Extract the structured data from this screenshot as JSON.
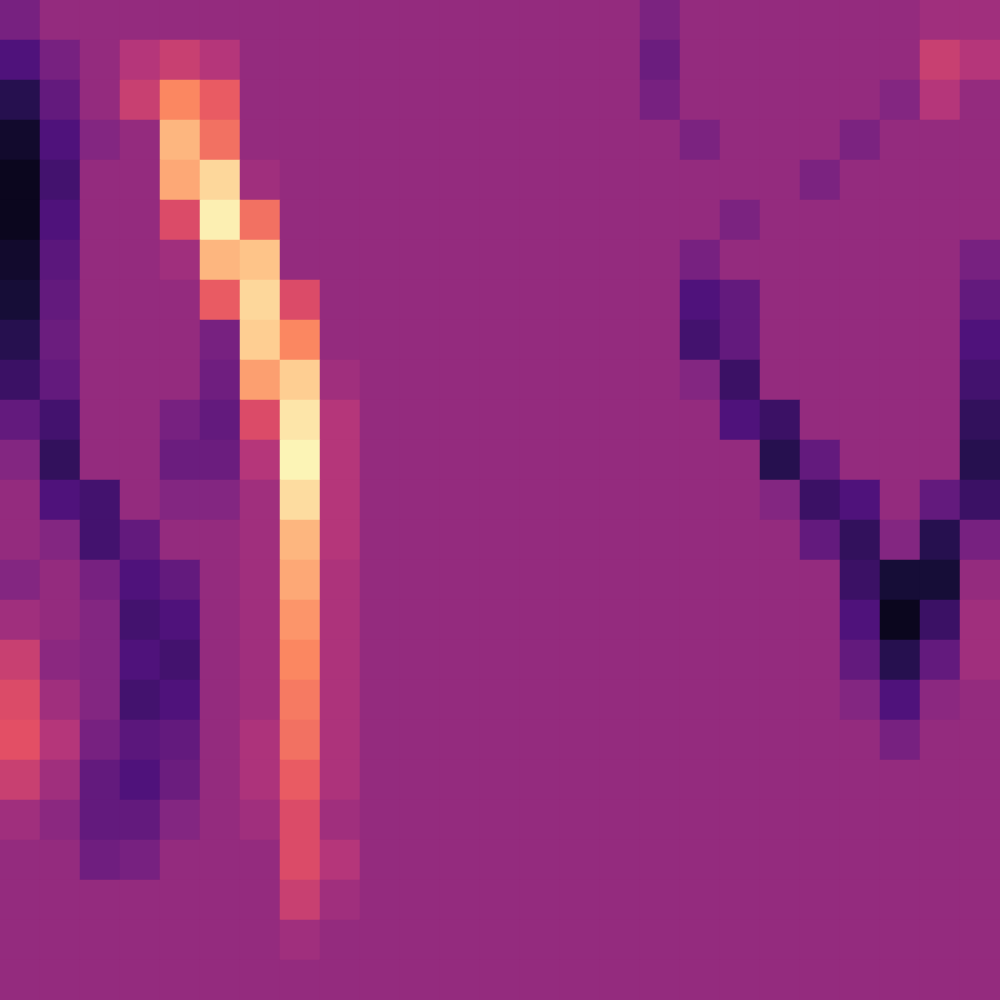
{
  "chart_data": {
    "type": "heatmap",
    "tick_labels": false,
    "grid": false,
    "color_range": [
      0,
      1
    ],
    "values": [
      [
        0.35,
        0.42,
        0.42,
        0.42,
        0.42,
        0.42,
        0.42,
        0.42,
        0.42,
        0.42,
        0.42,
        0.42,
        0.42,
        0.42,
        0.42,
        0.42,
        0.36,
        0.42,
        0.42,
        0.42,
        0.42,
        0.42,
        0.42,
        0.45,
        0.45
      ],
      [
        0.25,
        0.35,
        0.42,
        0.5,
        0.55,
        0.5,
        0.42,
        0.42,
        0.42,
        0.42,
        0.42,
        0.42,
        0.42,
        0.42,
        0.42,
        0.42,
        0.32,
        0.42,
        0.42,
        0.42,
        0.42,
        0.42,
        0.42,
        0.55,
        0.5
      ],
      [
        0.15,
        0.3,
        0.42,
        0.55,
        0.75,
        0.65,
        0.42,
        0.42,
        0.42,
        0.42,
        0.42,
        0.42,
        0.42,
        0.42,
        0.42,
        0.42,
        0.35,
        0.42,
        0.42,
        0.42,
        0.42,
        0.42,
        0.38,
        0.5,
        0.42
      ],
      [
        0.08,
        0.25,
        0.38,
        0.42,
        0.85,
        0.7,
        0.42,
        0.42,
        0.42,
        0.42,
        0.42,
        0.42,
        0.42,
        0.42,
        0.42,
        0.42,
        0.42,
        0.36,
        0.42,
        0.42,
        0.42,
        0.36,
        0.42,
        0.42,
        0.42
      ],
      [
        0.05,
        0.22,
        0.42,
        0.42,
        0.82,
        0.92,
        0.45,
        0.42,
        0.42,
        0.42,
        0.42,
        0.42,
        0.42,
        0.42,
        0.42,
        0.42,
        0.42,
        0.42,
        0.42,
        0.42,
        0.36,
        0.42,
        0.42,
        0.42,
        0.42
      ],
      [
        0.05,
        0.25,
        0.42,
        0.42,
        0.6,
        0.97,
        0.7,
        0.42,
        0.42,
        0.42,
        0.42,
        0.42,
        0.42,
        0.42,
        0.42,
        0.42,
        0.42,
        0.42,
        0.36,
        0.42,
        0.42,
        0.42,
        0.42,
        0.42,
        0.42
      ],
      [
        0.08,
        0.28,
        0.42,
        0.42,
        0.45,
        0.85,
        0.88,
        0.42,
        0.42,
        0.42,
        0.42,
        0.42,
        0.42,
        0.42,
        0.42,
        0.42,
        0.42,
        0.35,
        0.42,
        0.42,
        0.42,
        0.42,
        0.42,
        0.42,
        0.35
      ],
      [
        0.1,
        0.3,
        0.42,
        0.42,
        0.42,
        0.65,
        0.92,
        0.6,
        0.42,
        0.42,
        0.42,
        0.42,
        0.42,
        0.42,
        0.42,
        0.42,
        0.42,
        0.25,
        0.3,
        0.42,
        0.42,
        0.42,
        0.42,
        0.42,
        0.3
      ],
      [
        0.15,
        0.32,
        0.42,
        0.42,
        0.42,
        0.35,
        0.9,
        0.75,
        0.42,
        0.42,
        0.42,
        0.42,
        0.42,
        0.42,
        0.42,
        0.42,
        0.42,
        0.22,
        0.3,
        0.42,
        0.42,
        0.42,
        0.42,
        0.42,
        0.25
      ],
      [
        0.2,
        0.3,
        0.42,
        0.42,
        0.42,
        0.33,
        0.8,
        0.9,
        0.45,
        0.42,
        0.42,
        0.42,
        0.42,
        0.42,
        0.42,
        0.42,
        0.42,
        0.38,
        0.2,
        0.42,
        0.42,
        0.42,
        0.42,
        0.42,
        0.22
      ],
      [
        0.3,
        0.22,
        0.42,
        0.42,
        0.35,
        0.3,
        0.6,
        0.95,
        0.5,
        0.42,
        0.42,
        0.42,
        0.42,
        0.42,
        0.42,
        0.42,
        0.42,
        0.42,
        0.25,
        0.2,
        0.42,
        0.42,
        0.42,
        0.42,
        0.18
      ],
      [
        0.38,
        0.18,
        0.42,
        0.42,
        0.32,
        0.32,
        0.5,
        0.98,
        0.5,
        0.42,
        0.42,
        0.42,
        0.42,
        0.42,
        0.42,
        0.42,
        0.42,
        0.42,
        0.42,
        0.15,
        0.3,
        0.42,
        0.42,
        0.42,
        0.15
      ],
      [
        0.42,
        0.25,
        0.22,
        0.42,
        0.38,
        0.38,
        0.45,
        0.93,
        0.5,
        0.42,
        0.42,
        0.42,
        0.42,
        0.42,
        0.42,
        0.42,
        0.42,
        0.42,
        0.42,
        0.38,
        0.2,
        0.25,
        0.42,
        0.3,
        0.2
      ],
      [
        0.42,
        0.38,
        0.22,
        0.3,
        0.42,
        0.42,
        0.45,
        0.85,
        0.5,
        0.42,
        0.42,
        0.42,
        0.42,
        0.42,
        0.42,
        0.42,
        0.42,
        0.42,
        0.42,
        0.42,
        0.3,
        0.18,
        0.38,
        0.15,
        0.35
      ],
      [
        0.38,
        0.42,
        0.35,
        0.25,
        0.3,
        0.42,
        0.45,
        0.82,
        0.48,
        0.42,
        0.42,
        0.42,
        0.42,
        0.42,
        0.42,
        0.42,
        0.42,
        0.42,
        0.42,
        0.42,
        0.42,
        0.2,
        0.1,
        0.1,
        0.42
      ],
      [
        0.45,
        0.42,
        0.38,
        0.22,
        0.25,
        0.42,
        0.45,
        0.78,
        0.48,
        0.42,
        0.42,
        0.42,
        0.42,
        0.42,
        0.42,
        0.42,
        0.42,
        0.42,
        0.42,
        0.42,
        0.42,
        0.25,
        0.05,
        0.2,
        0.45
      ],
      [
        0.55,
        0.4,
        0.38,
        0.25,
        0.22,
        0.42,
        0.45,
        0.75,
        0.48,
        0.42,
        0.42,
        0.42,
        0.42,
        0.42,
        0.42,
        0.42,
        0.42,
        0.42,
        0.42,
        0.42,
        0.42,
        0.3,
        0.15,
        0.3,
        0.45
      ],
      [
        0.6,
        0.45,
        0.38,
        0.22,
        0.25,
        0.42,
        0.45,
        0.72,
        0.48,
        0.42,
        0.42,
        0.42,
        0.42,
        0.42,
        0.42,
        0.42,
        0.42,
        0.42,
        0.42,
        0.42,
        0.42,
        0.38,
        0.25,
        0.4,
        0.42
      ],
      [
        0.62,
        0.5,
        0.35,
        0.28,
        0.3,
        0.42,
        0.48,
        0.7,
        0.48,
        0.42,
        0.42,
        0.42,
        0.42,
        0.42,
        0.42,
        0.42,
        0.42,
        0.42,
        0.42,
        0.42,
        0.42,
        0.42,
        0.35,
        0.42,
        0.42
      ],
      [
        0.55,
        0.45,
        0.3,
        0.25,
        0.32,
        0.42,
        0.48,
        0.65,
        0.48,
        0.42,
        0.42,
        0.42,
        0.42,
        0.42,
        0.42,
        0.42,
        0.42,
        0.42,
        0.42,
        0.42,
        0.42,
        0.42,
        0.42,
        0.42,
        0.42
      ],
      [
        0.45,
        0.4,
        0.3,
        0.3,
        0.38,
        0.42,
        0.45,
        0.6,
        0.45,
        0.42,
        0.42,
        0.42,
        0.42,
        0.42,
        0.42,
        0.42,
        0.42,
        0.42,
        0.42,
        0.42,
        0.42,
        0.42,
        0.42,
        0.42,
        0.42
      ],
      [
        0.42,
        0.42,
        0.33,
        0.35,
        0.42,
        0.42,
        0.42,
        0.6,
        0.5,
        0.42,
        0.42,
        0.42,
        0.42,
        0.42,
        0.42,
        0.42,
        0.42,
        0.42,
        0.42,
        0.42,
        0.42,
        0.42,
        0.42,
        0.42,
        0.42
      ],
      [
        0.42,
        0.42,
        0.42,
        0.42,
        0.42,
        0.42,
        0.42,
        0.55,
        0.45,
        0.42,
        0.42,
        0.42,
        0.42,
        0.42,
        0.42,
        0.42,
        0.42,
        0.42,
        0.42,
        0.42,
        0.42,
        0.42,
        0.42,
        0.42,
        0.42
      ],
      [
        0.42,
        0.42,
        0.42,
        0.42,
        0.42,
        0.42,
        0.42,
        0.45,
        0.42,
        0.42,
        0.42,
        0.42,
        0.42,
        0.42,
        0.42,
        0.42,
        0.42,
        0.42,
        0.42,
        0.42,
        0.42,
        0.42,
        0.42,
        0.42,
        0.42
      ],
      [
        0.42,
        0.42,
        0.42,
        0.42,
        0.42,
        0.42,
        0.42,
        0.42,
        0.42,
        0.42,
        0.42,
        0.42,
        0.42,
        0.42,
        0.42,
        0.42,
        0.42,
        0.42,
        0.42,
        0.42,
        0.42,
        0.42,
        0.42,
        0.42,
        0.42
      ]
    ]
  }
}
